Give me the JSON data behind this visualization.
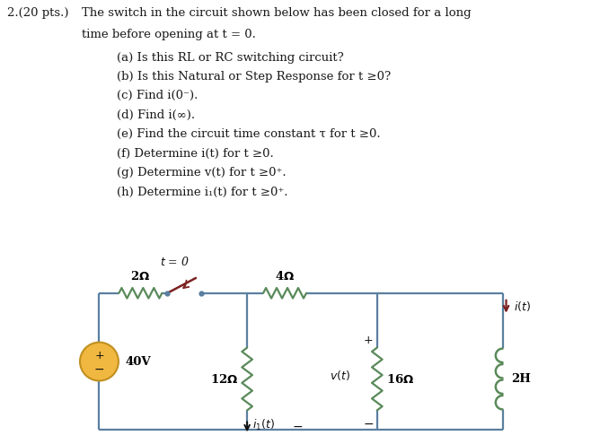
{
  "bg_color": "#ffffff",
  "text_color": "#1a1a1a",
  "wire_color": "#5a7fa0",
  "resistor_color": "#5a8a5a",
  "switch_color": "#7b2020",
  "source_color": "#f0b840",
  "source_edge": "#c09020",
  "fig_width": 6.68,
  "fig_height": 4.95,
  "questions": [
    "(a) Is this RL or RC switching circuit?",
    "(b) Is this Natural or Step Response for t ≥0?",
    "(c) Find i(0⁻).",
    "(d) Find i(∞).",
    "(e) Find the circuit time constant τ for t ≥0.",
    "(f) Determine i(t) for t ≥0.",
    "(g) Determine v(t) for t ≥0⁺.",
    "(h) Determine i₁(t) for t ≥0⁺."
  ]
}
